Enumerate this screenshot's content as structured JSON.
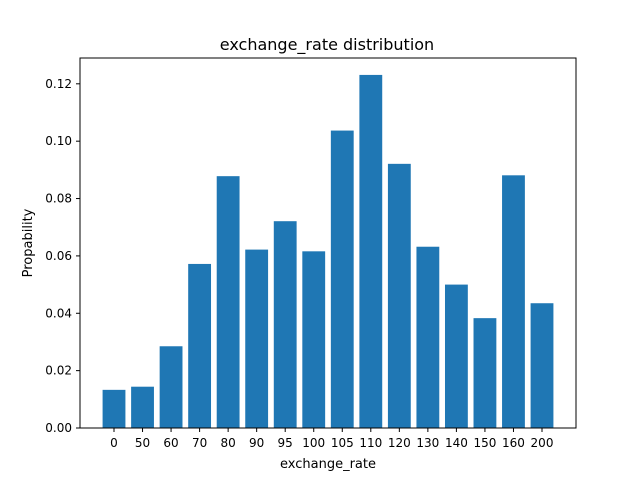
{
  "chart_data": {
    "type": "bar",
    "title": "exchange_rate distribution",
    "xlabel": "exchange_rate",
    "ylabel": "Propability",
    "categories": [
      "0",
      "50",
      "60",
      "70",
      "80",
      "90",
      "95",
      "100",
      "105",
      "110",
      "120",
      "130",
      "140",
      "150",
      "160",
      "200"
    ],
    "values": [
      0.0133,
      0.0144,
      0.0285,
      0.0572,
      0.0878,
      0.0622,
      0.0721,
      0.0616,
      0.1037,
      0.1231,
      0.0921,
      0.0632,
      0.05,
      0.0383,
      0.0881,
      0.0435
    ],
    "ylim": [
      0,
      0.129
    ],
    "yticks": [
      "0.00",
      "0.02",
      "0.04",
      "0.06",
      "0.08",
      "0.10",
      "0.12"
    ],
    "grid": false,
    "bar_color": "#1f77b4"
  }
}
